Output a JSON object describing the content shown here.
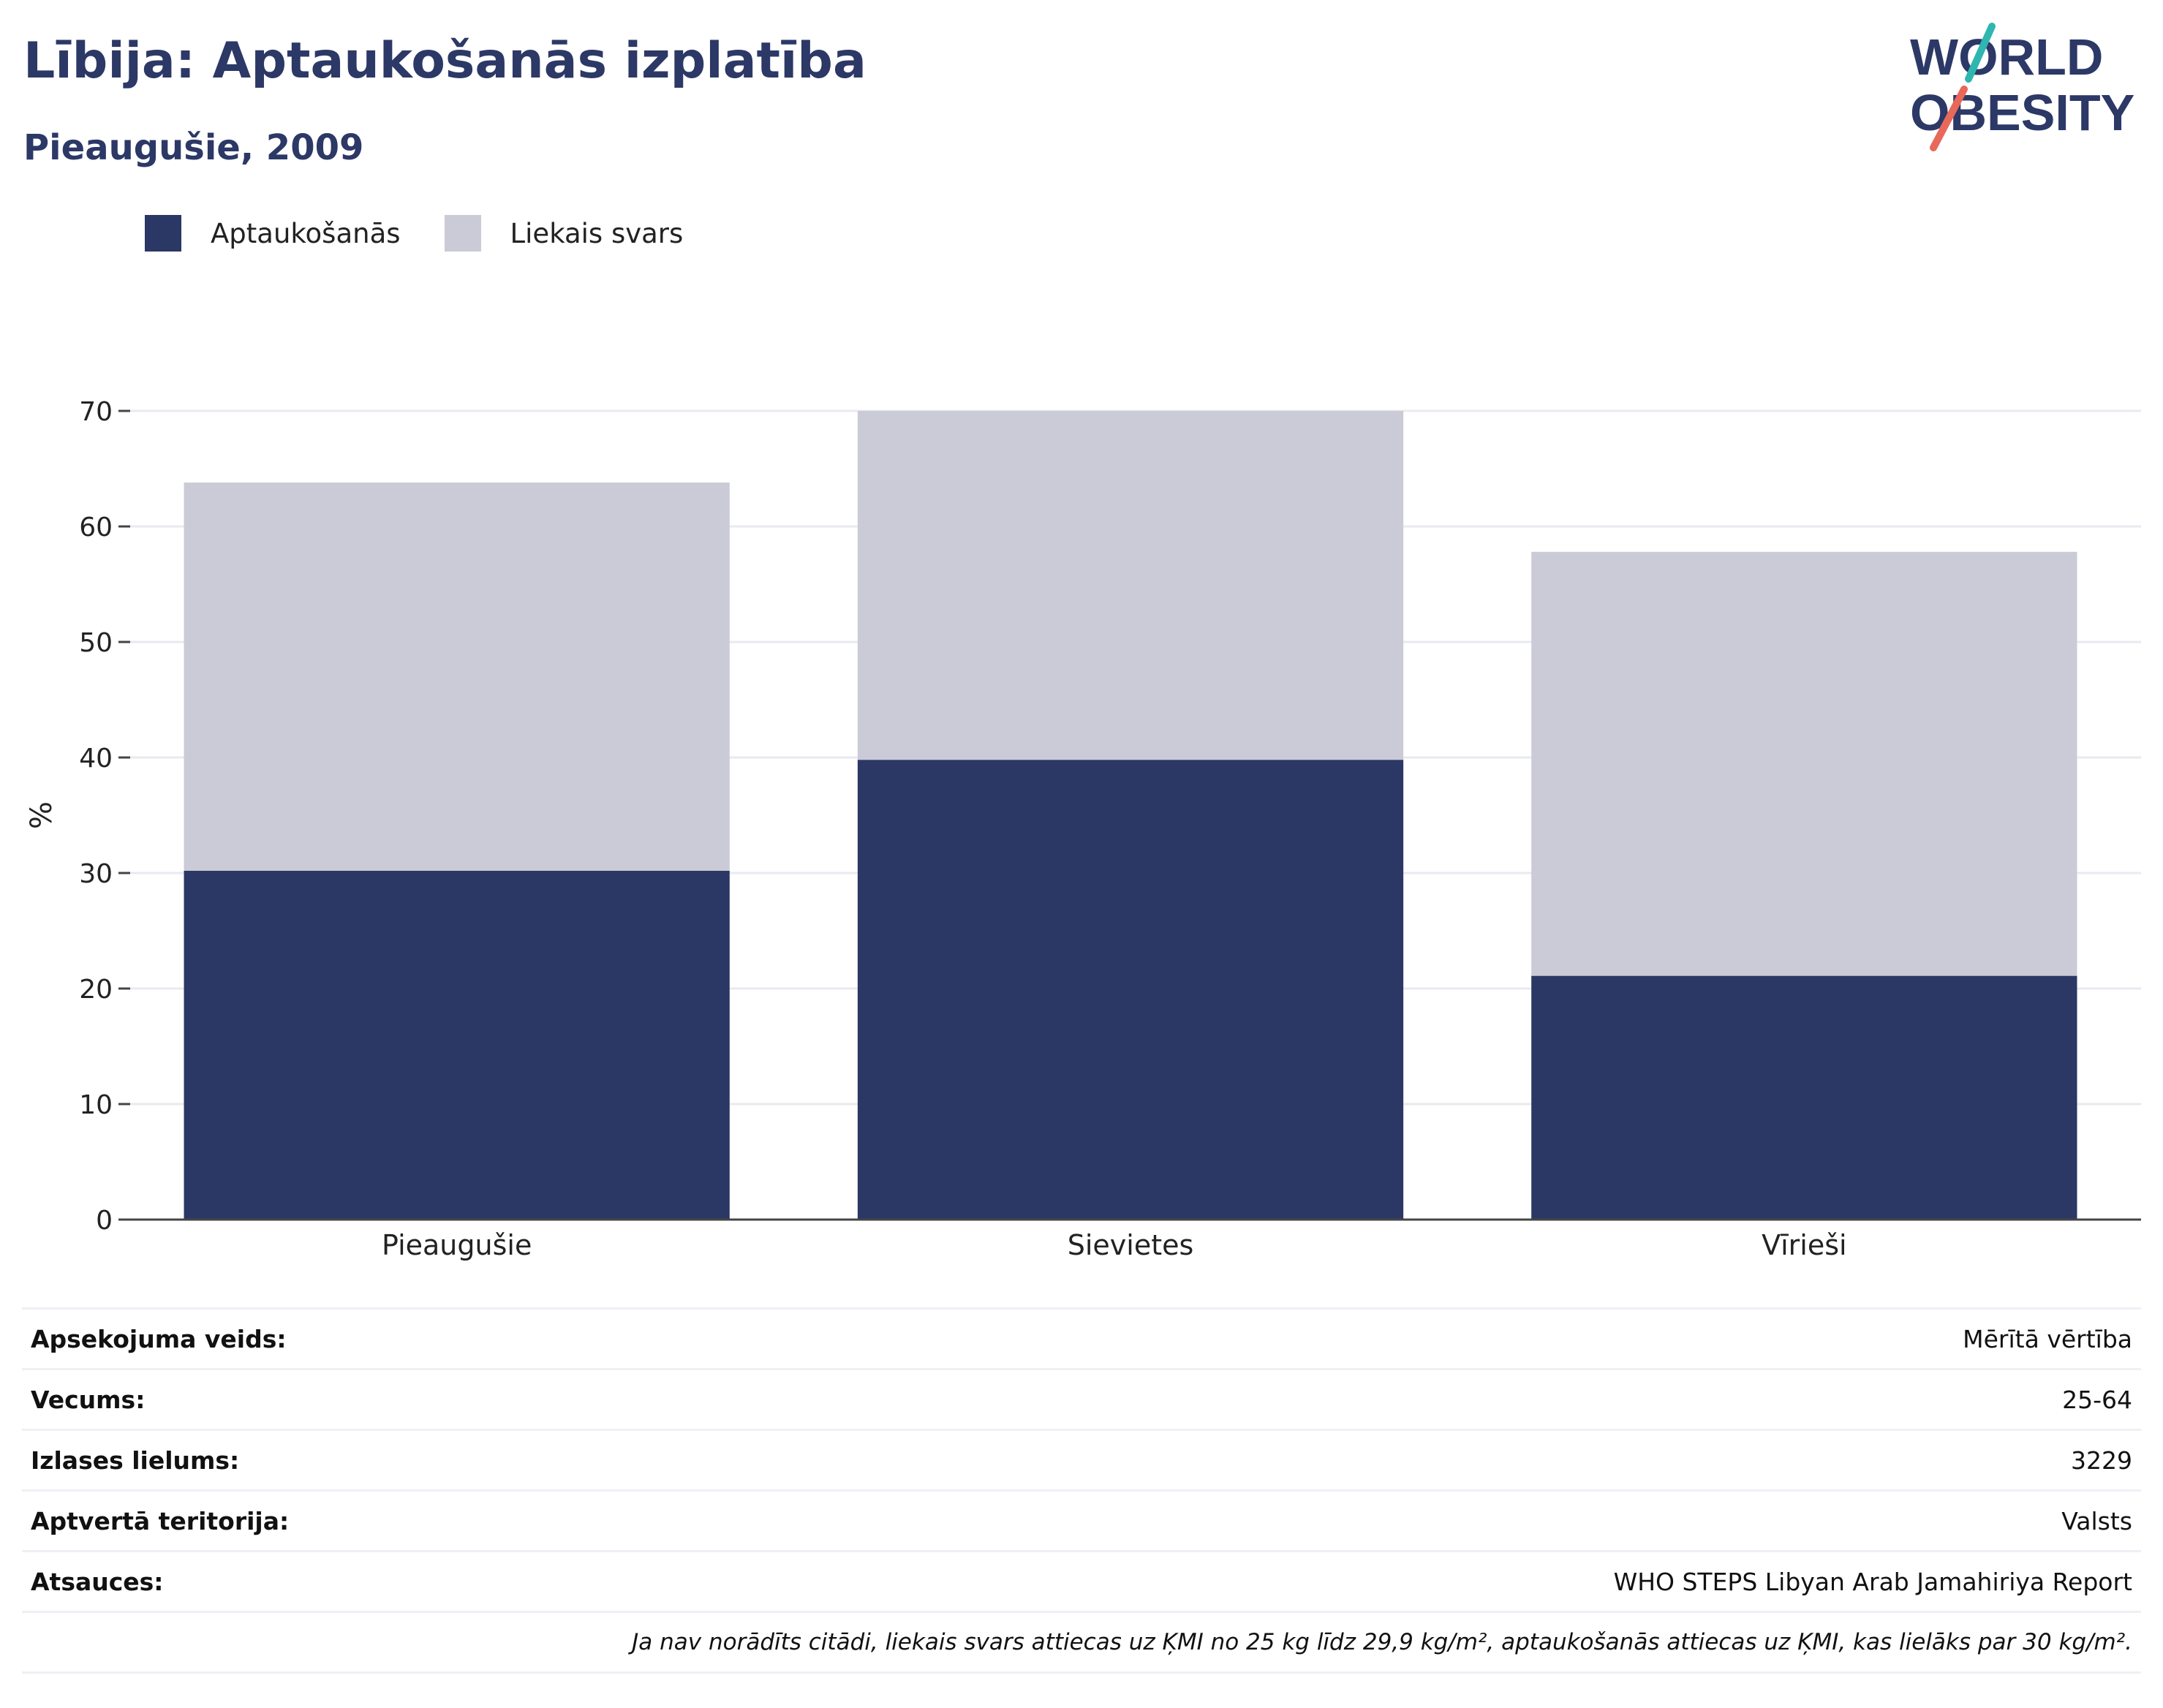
{
  "header": {
    "title": "Lībija: Aptaukošanās izplatība",
    "subtitle": "Pieaugušie, 2009"
  },
  "logo": {
    "line1": "WORLD",
    "line2": "OBESITY"
  },
  "colors": {
    "obesity": "#2b3764",
    "overweight": "#cacbd6",
    "text_dark": "#2c3866",
    "logo_teal": "#2fb6b0",
    "logo_red": "#e8685a"
  },
  "chart_data": {
    "type": "bar",
    "stacked": true,
    "categories": [
      "Pieaugušie",
      "Sievietes",
      "Vīrieši"
    ],
    "series": [
      {
        "name": "Aptaukošanās",
        "values": [
          30.2,
          39.8,
          21.1
        ]
      },
      {
        "name": "Liekais svars",
        "values": [
          33.6,
          30.2,
          36.7
        ]
      }
    ],
    "ylabel": "%",
    "ylim": [
      0,
      70
    ],
    "yticks": [
      0,
      10,
      20,
      30,
      40,
      50,
      60,
      70
    ],
    "grid": true,
    "legend_position": "top-left"
  },
  "info": {
    "rows": [
      {
        "key": "Apsekojuma veids:",
        "value": "Mērītā vērtība"
      },
      {
        "key": "Vecums:",
        "value": "25-64"
      },
      {
        "key": "Izlases lielums:",
        "value": "3229"
      },
      {
        "key": "Aptvertā teritorija:",
        "value": "Valsts"
      },
      {
        "key": "Atsauces:",
        "value": "WHO STEPS Libyan Arab Jamahiriya Report"
      }
    ],
    "note": "Ja nav norādīts citādi, liekais svars attiecas uz ĶMI no 25 kg līdz 29,9 kg/m², aptaukošanās attiecas uz ĶMI, kas lielāks par 30 kg/m²."
  }
}
